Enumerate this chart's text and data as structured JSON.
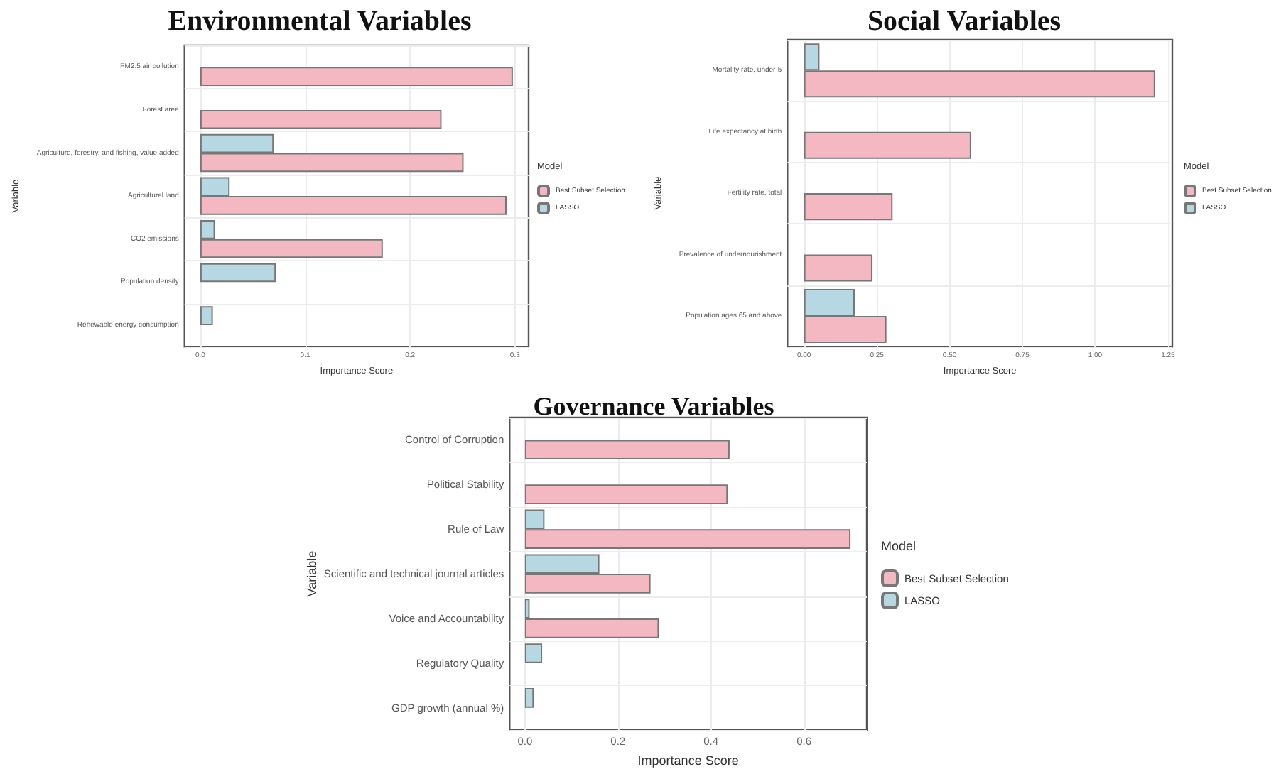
{
  "chart_data": [
    {
      "type": "bar",
      "orientation": "horizontal",
      "title": "Environmental Variables",
      "xlabel": "Importance Score",
      "ylabel": "Variable",
      "legend_title": "Model",
      "legend": "right",
      "grid": true,
      "categories": [
        "PM2.5 air pollution",
        "Forest area",
        "Agriculture, forestry, and fishing, value added",
        "Agricultural land",
        "CO2 emissions",
        "Population density",
        "Renewable energy consumption"
      ],
      "xlim": [
        -0.015,
        0.313
      ],
      "xticks": [
        {
          "value": 0,
          "label": "0.0"
        },
        {
          "value": 0.1,
          "label": "0.1"
        },
        {
          "value": 0.2,
          "label": "0.2"
        },
        {
          "value": 0.3,
          "label": "0.3"
        }
      ],
      "series": [
        {
          "name": "Best Subset Selection",
          "color": "#f4b8c3",
          "values": [
            0.298,
            0.23,
            0.251,
            0.292,
            0.174,
            null,
            null
          ]
        },
        {
          "name": "LASSO",
          "color": "#b5d8e2",
          "values": [
            null,
            null,
            0.07,
            0.028,
            0.014,
            0.072,
            0.012
          ]
        }
      ]
    },
    {
      "type": "bar",
      "orientation": "horizontal",
      "title": "Social Variables",
      "xlabel": "Importance Score",
      "ylabel": "Variable",
      "legend_title": "Model",
      "legend": "right",
      "grid": true,
      "categories": [
        "Mortality rate, under-5",
        "Life expectancy at birth",
        "Fertility rate, total",
        "Prevalence of undernourishment",
        "Population ages 65 and above"
      ],
      "xlim": [
        -0.057,
        1.265
      ],
      "xticks": [
        {
          "value": 0,
          "label": "0.00"
        },
        {
          "value": 0.25,
          "label": "0.25"
        },
        {
          "value": 0.5,
          "label": "0.50"
        },
        {
          "value": 0.75,
          "label": "0.75"
        },
        {
          "value": 1,
          "label": "1.00"
        },
        {
          "value": 1.25,
          "label": "1.25"
        }
      ],
      "series": [
        {
          "name": "Best Subset Selection",
          "color": "#f4b8c3",
          "values": [
            1.206,
            0.574,
            0.304,
            0.235,
            0.283
          ]
        },
        {
          "name": "LASSO",
          "color": "#b5d8e2",
          "values": [
            0.053,
            null,
            null,
            null,
            0.174
          ]
        }
      ]
    },
    {
      "type": "bar",
      "orientation": "horizontal",
      "title": "Governance Variables",
      "xlabel": "Importance Score",
      "ylabel": "Variable",
      "legend_title": "Model",
      "legend": "right",
      "grid": true,
      "categories": [
        "Control of Corruption",
        "Political Stability",
        "Rule of Law",
        "Scientific and technical journal articles",
        "Voice and Accountability",
        "Regulatory Quality",
        "GDP growth (annual %)"
      ],
      "xlim": [
        -0.033,
        0.735
      ],
      "xticks": [
        {
          "value": 0,
          "label": "0.0"
        },
        {
          "value": 0.2,
          "label": "0.2"
        },
        {
          "value": 0.4,
          "label": "0.4"
        },
        {
          "value": 0.6,
          "label": "0.6"
        }
      ],
      "series": [
        {
          "name": "Best Subset Selection",
          "color": "#f4b8c3",
          "values": [
            0.44,
            0.436,
            0.7,
            0.27,
            0.288,
            null,
            null
          ]
        },
        {
          "name": "LASSO",
          "color": "#b5d8e2",
          "values": [
            null,
            null,
            0.042,
            0.16,
            0.01,
            0.037,
            0.019
          ]
        }
      ]
    }
  ]
}
